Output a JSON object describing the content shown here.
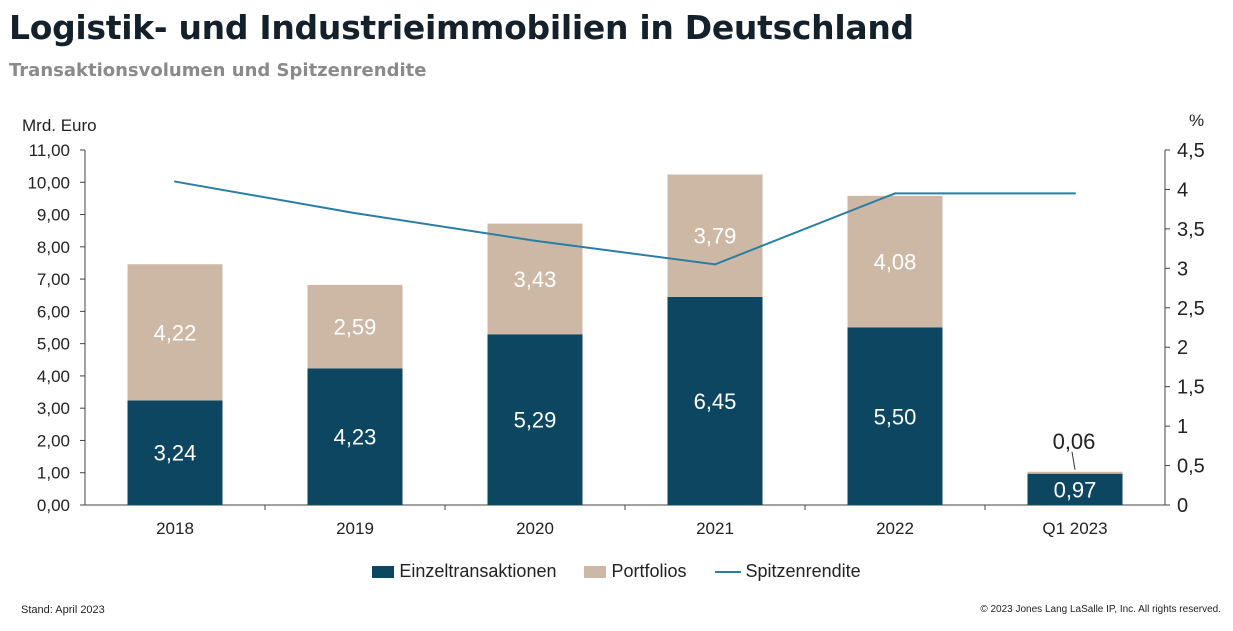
{
  "header": {
    "title": "Logistik- und Industrieimmobilien in Deutschland",
    "subtitle": "Transaktionsvolumen und Spitzenrendite"
  },
  "colors": {
    "einzel": "#0c4660",
    "portfolio": "#cdb8a6",
    "line": "#2a7ea3",
    "axis": "#444444"
  },
  "chart_data": {
    "type": "bar",
    "stacked": true,
    "categories": [
      "2018",
      "2019",
      "2020",
      "2021",
      "2022",
      "Q1 2023"
    ],
    "series": [
      {
        "name": "Einzeltransaktionen",
        "type": "bar",
        "values": [
          3.24,
          4.23,
          5.29,
          6.45,
          5.5,
          0.97
        ],
        "labels": [
          "3,24",
          "4,23",
          "5,29",
          "6,45",
          "5,50",
          "0,97"
        ]
      },
      {
        "name": "Portfolios",
        "type": "bar",
        "values": [
          4.22,
          2.59,
          3.43,
          3.79,
          4.08,
          0.06
        ],
        "labels": [
          "4,22",
          "2,59",
          "3,43",
          "3,79",
          "4,08",
          "0,06"
        ]
      },
      {
        "name": "Spitzenrendite",
        "type": "line",
        "axis": "right",
        "values": [
          4.1,
          3.7,
          3.35,
          3.05,
          3.95,
          3.95
        ]
      }
    ],
    "ylabel": "Mrd. Euro",
    "y2label": "%",
    "ylim": [
      0,
      11
    ],
    "y2lim": [
      0,
      4.5
    ],
    "yticks": [
      "0,00",
      "1,00",
      "2,00",
      "3,00",
      "4,00",
      "5,00",
      "6,00",
      "7,00",
      "8,00",
      "9,00",
      "10,00",
      "11,00"
    ],
    "y2ticks": [
      "0",
      "0,5",
      "1",
      "1,5",
      "2",
      "2,5",
      "3",
      "3,5",
      "4",
      "4,5"
    ],
    "grid": false,
    "legend": "bottom-center"
  },
  "footer": {
    "left": "Stand: April 2023",
    "right": "© 2023 Jones Lang LaSalle IP, Inc. All rights reserved."
  }
}
